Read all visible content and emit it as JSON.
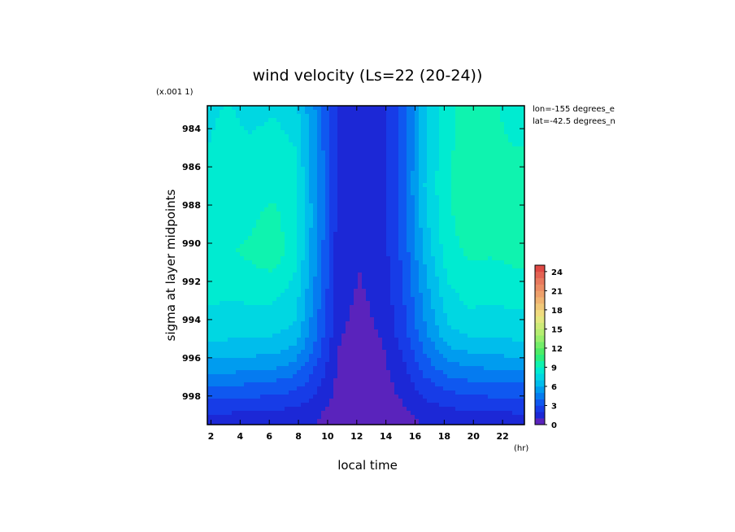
{
  "chart_data": {
    "type": "heatmap",
    "title": "wind velocity (Ls=22 (20-24))",
    "xlabel": "local time",
    "ylabel": "sigma at layer midpoints",
    "x_unit": "(hr)",
    "y_scale_note": "(x.001 1)",
    "annotations": [
      "lon=-155 degrees_e",
      "lat=-42.5 degrees_n"
    ],
    "x_ticks": [
      "2",
      "4",
      "6",
      "8",
      "10",
      "12",
      "14",
      "16",
      "18",
      "20",
      "22"
    ],
    "y_ticks": [
      "984",
      "986",
      "988",
      "990",
      "992",
      "994",
      "996",
      "998"
    ],
    "xlim": [
      1.75,
      23.5
    ],
    "ylim": [
      999.5,
      982.8
    ],
    "colorbar": {
      "ticks": [
        "0",
        "3",
        "6",
        "9",
        "12",
        "15",
        "18",
        "21",
        "24"
      ],
      "range": [
        0,
        25
      ]
    },
    "x": [
      1.75,
      3.25,
      4.75,
      6.25,
      7.75,
      9.25,
      10.75,
      12.25,
      13.75,
      15.25,
      16.75,
      18.25,
      19.75,
      21.25,
      22.75,
      23.5
    ],
    "y": [
      983,
      985,
      987,
      989,
      990.5,
      991.5,
      993,
      994.5,
      995.5,
      996.5,
      997.5,
      998.5,
      999.2
    ],
    "z": [
      [
        7.8,
        8.1,
        7.6,
        7.9,
        7.4,
        4.8,
        1.6,
        1.3,
        1.6,
        3.6,
        6.8,
        8.6,
        9.6,
        9.2,
        8.6,
        8.6
      ],
      [
        8.0,
        8.4,
        8.2,
        8.6,
        8.0,
        5.0,
        1.6,
        1.3,
        1.6,
        3.6,
        7.0,
        8.8,
        9.6,
        9.3,
        9.0,
        9.0
      ],
      [
        8.2,
        8.6,
        8.4,
        8.8,
        8.2,
        5.2,
        1.6,
        1.2,
        1.6,
        3.7,
        7.2,
        8.9,
        9.7,
        9.3,
        9.1,
        9.1
      ],
      [
        8.4,
        8.8,
        8.9,
        9.4,
        8.4,
        5.2,
        1.5,
        1.1,
        1.6,
        3.6,
        6.8,
        8.8,
        9.5,
        9.3,
        9.3,
        9.3
      ],
      [
        8.6,
        8.9,
        9.2,
        9.8,
        8.3,
        5.0,
        1.4,
        1.0,
        1.5,
        3.4,
        6.4,
        8.6,
        9.2,
        9.1,
        9.3,
        9.3
      ],
      [
        8.5,
        8.6,
        8.8,
        9.0,
        8.0,
        4.8,
        1.3,
        1.0,
        1.4,
        3.2,
        6.0,
        8.2,
        8.8,
        8.7,
        8.9,
        8.9
      ],
      [
        8.1,
        8.0,
        8.1,
        8.1,
        7.5,
        4.5,
        1.2,
        0.9,
        1.2,
        3.0,
        5.5,
        7.6,
        8.2,
        8.1,
        8.2,
        8.2
      ],
      [
        7.6,
        7.3,
        7.4,
        7.3,
        6.8,
        4.1,
        1.1,
        0.8,
        1.1,
        2.7,
        5.0,
        6.9,
        7.4,
        7.4,
        7.5,
        7.5
      ],
      [
        6.8,
        6.7,
        6.5,
        6.4,
        5.8,
        3.6,
        1.0,
        0.7,
        0.9,
        2.3,
        4.3,
        5.9,
        6.3,
        6.4,
        6.6,
        6.6
      ],
      [
        5.5,
        5.4,
        5.3,
        5.1,
        4.6,
        2.9,
        0.8,
        0.6,
        0.7,
        1.9,
        3.5,
        4.6,
        5.0,
        5.1,
        5.3,
        5.3
      ],
      [
        4.0,
        3.9,
        3.8,
        3.6,
        3.3,
        2.2,
        0.7,
        0.4,
        0.6,
        1.4,
        2.6,
        3.3,
        3.6,
        3.7,
        3.8,
        3.8
      ],
      [
        2.6,
        2.5,
        2.4,
        2.3,
        2.1,
        1.5,
        0.5,
        0.3,
        0.4,
        1.0,
        1.8,
        2.1,
        2.3,
        2.4,
        2.5,
        2.5
      ],
      [
        1.6,
        1.6,
        1.5,
        1.5,
        1.4,
        1.0,
        0.4,
        0.3,
        0.3,
        0.7,
        1.2,
        1.4,
        1.5,
        1.5,
        1.6,
        1.6
      ]
    ]
  }
}
